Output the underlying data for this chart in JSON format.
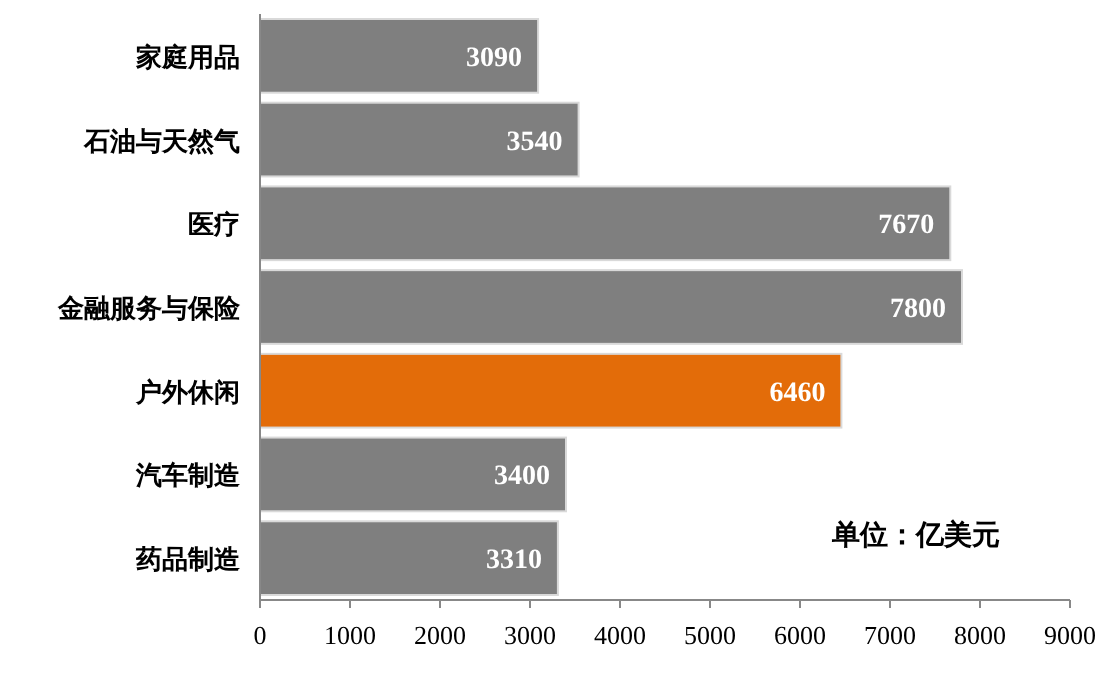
{
  "chart_data": {
    "type": "bar",
    "orientation": "horizontal",
    "categories": [
      "家庭用品",
      "石油与天然气",
      "医疗",
      "金融服务与保险",
      "户外休闲",
      "汽车制造",
      "药品制造"
    ],
    "values": [
      3090,
      3540,
      7670,
      7800,
      6460,
      3400,
      3310
    ],
    "colors": [
      "#7f7f7f",
      "#7f7f7f",
      "#7f7f7f",
      "#7f7f7f",
      "#e36c09",
      "#7f7f7f",
      "#7f7f7f"
    ],
    "xlim": [
      0,
      9000
    ],
    "xticks": [
      0,
      1000,
      2000,
      3000,
      4000,
      5000,
      6000,
      7000,
      8000,
      9000
    ],
    "data_labels": true,
    "annotations": [
      "单位：亿美元"
    ]
  }
}
